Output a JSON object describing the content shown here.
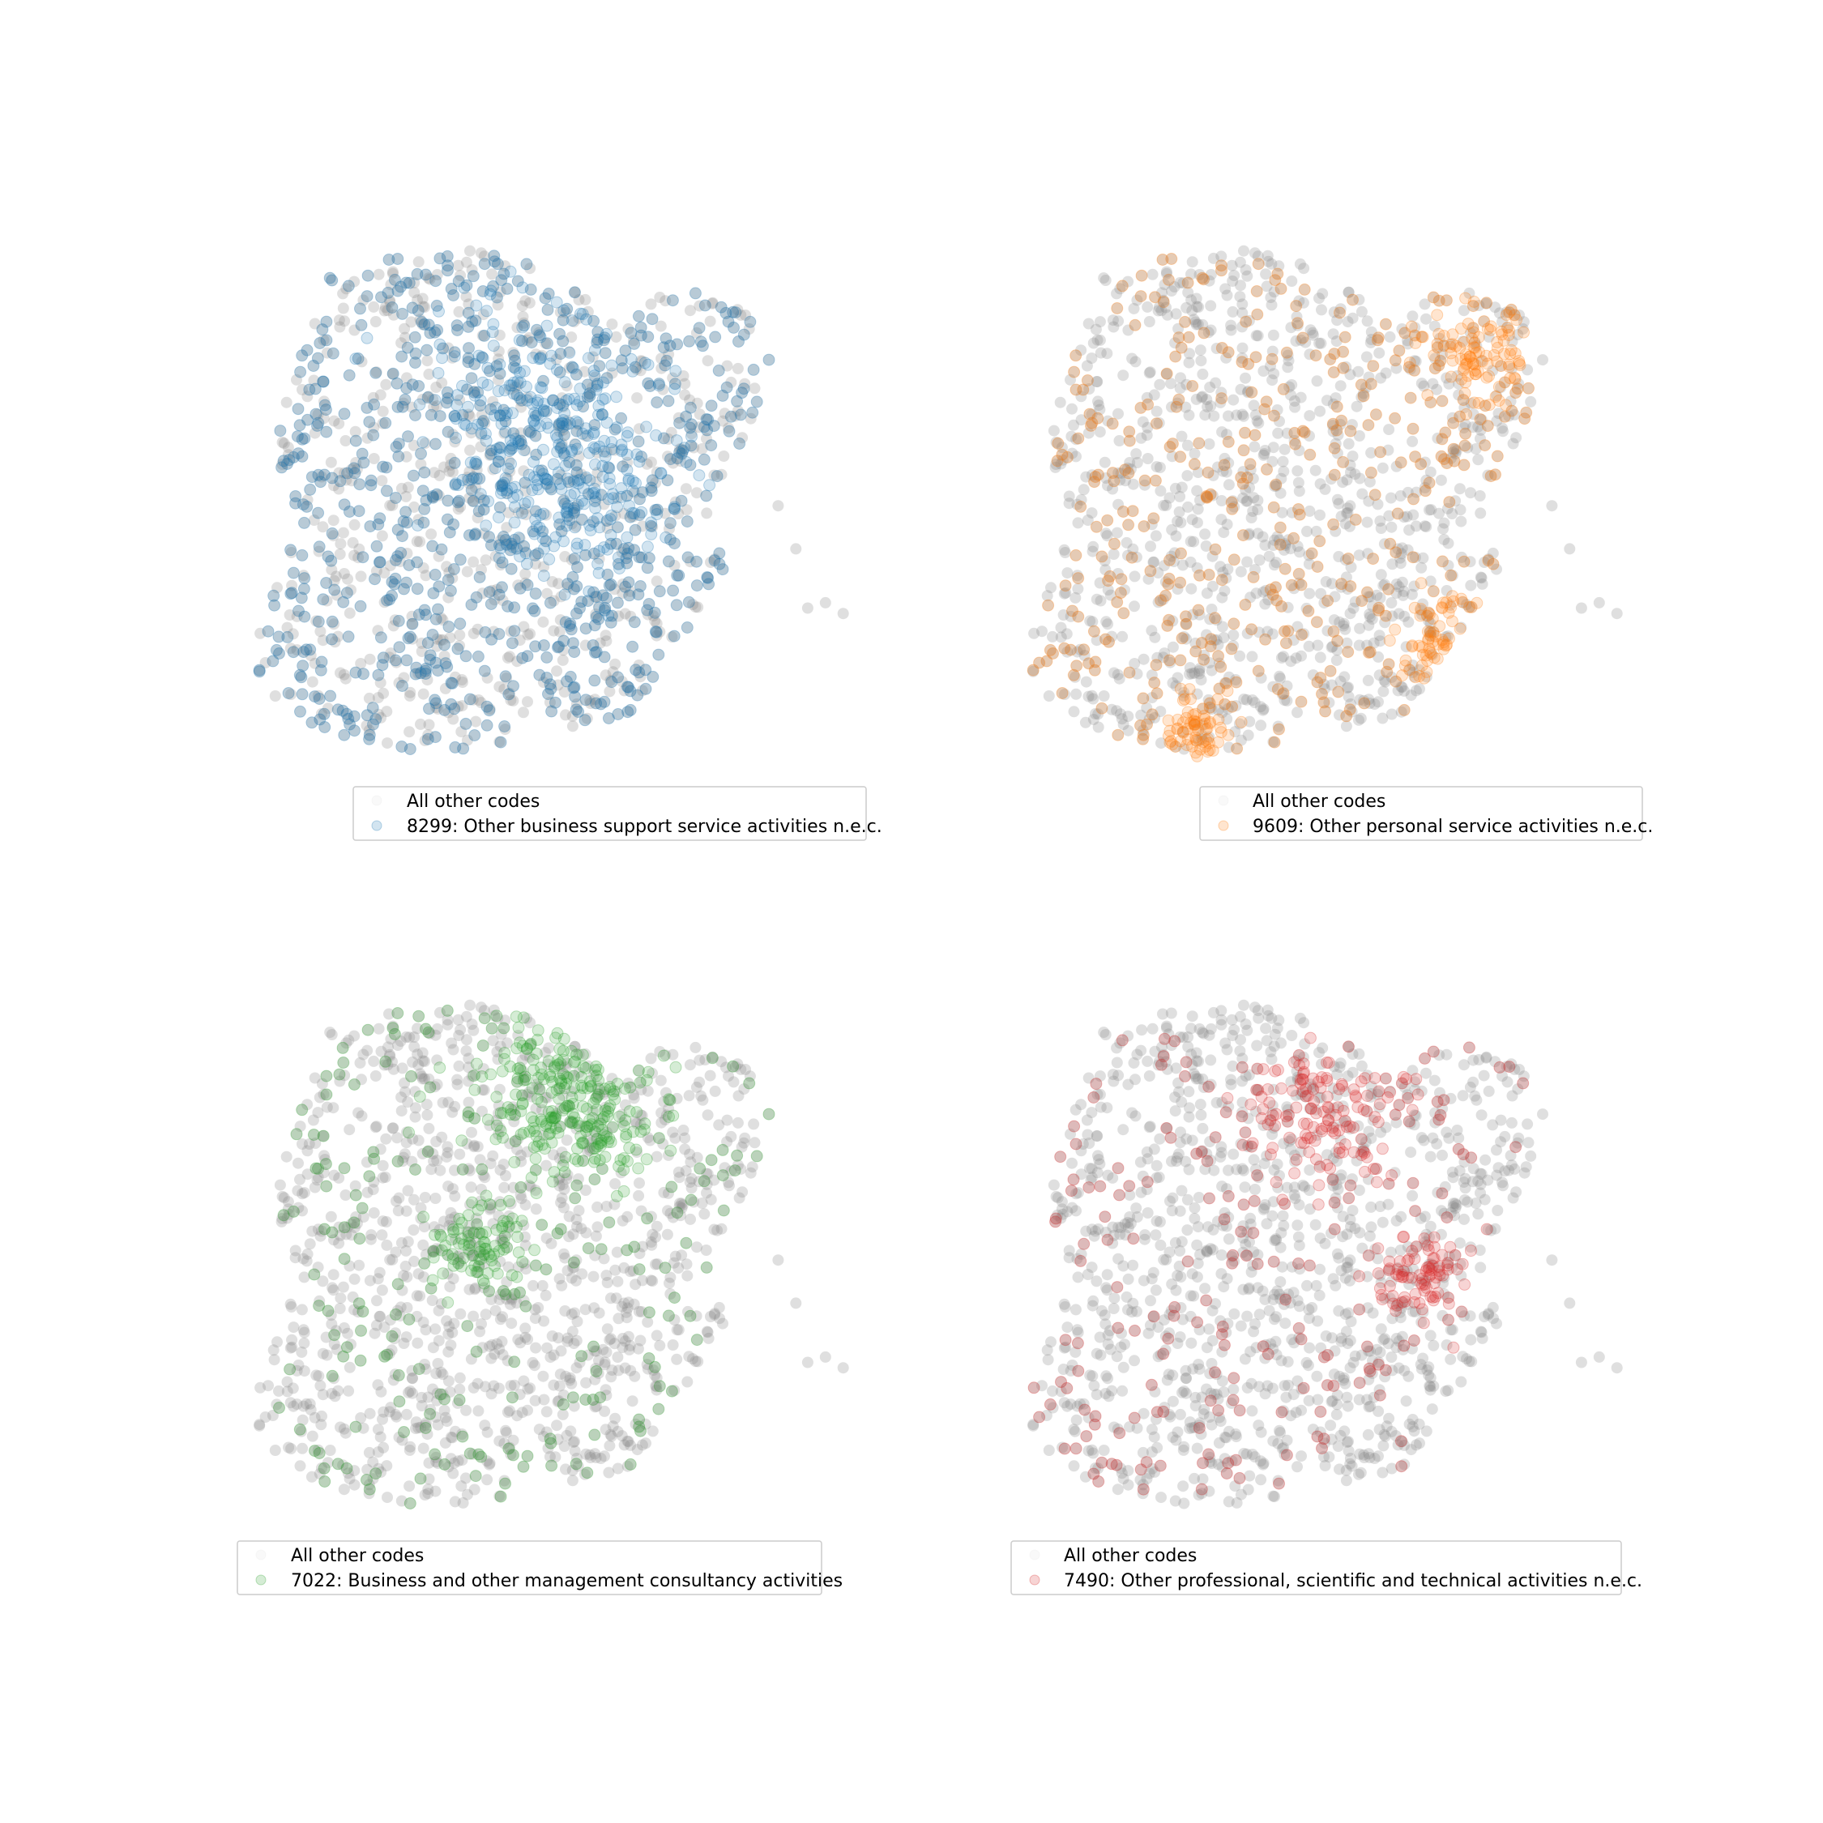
{
  "chart_data": [
    {
      "type": "scatter",
      "axes_visible": false,
      "legend_placement": "lower-right",
      "series": [
        {
          "name": "All other codes",
          "color": "#808080",
          "opacity": 0.05
        },
        {
          "name": "8299: Other business support service activities n.e.c.",
          "color": "#1f77b4",
          "opacity": 0.2,
          "density": 0.55,
          "hotspots": [
            [
              0.45,
              0.3,
              0.12
            ],
            [
              0.55,
              0.45,
              0.1
            ]
          ]
        }
      ]
    },
    {
      "type": "scatter",
      "axes_visible": false,
      "legend_placement": "lower-right",
      "series": [
        {
          "name": "All other codes",
          "color": "#808080",
          "opacity": 0.05
        },
        {
          "name": "9609: Other personal service activities n.e.c.",
          "color": "#ff7f0e",
          "opacity": 0.2,
          "density": 0.28,
          "hotspots": [
            [
              0.84,
              0.6,
              0.03
            ],
            [
              0.7,
              0.73,
              0.05
            ],
            [
              0.28,
              0.9,
              0.04
            ],
            [
              0.76,
              0.2,
              0.06
            ]
          ]
        }
      ]
    },
    {
      "type": "scatter",
      "axes_visible": false,
      "legend_placement": "lower-left",
      "series": [
        {
          "name": "All other codes",
          "color": "#808080",
          "opacity": 0.05
        },
        {
          "name": "7022: Business and other management consultancy activities",
          "color": "#2ca02c",
          "opacity": 0.2,
          "density": 0.16,
          "hotspots": [
            [
              0.5,
              0.15,
              0.1
            ],
            [
              0.57,
              0.22,
              0.07
            ],
            [
              0.36,
              0.45,
              0.05
            ]
          ]
        }
      ]
    },
    {
      "type": "scatter",
      "axes_visible": false,
      "legend_placement": "lower-right",
      "series": [
        {
          "name": "All other codes",
          "color": "#808080",
          "opacity": 0.05
        },
        {
          "name": "7490: Other professional, scientific and technical activities n.e.c.",
          "color": "#d62728",
          "opacity": 0.2,
          "density": 0.14,
          "hotspots": [
            [
              0.65,
              0.52,
              0.05
            ],
            [
              0.5,
              0.2,
              0.08
            ]
          ]
        }
      ]
    }
  ]
}
